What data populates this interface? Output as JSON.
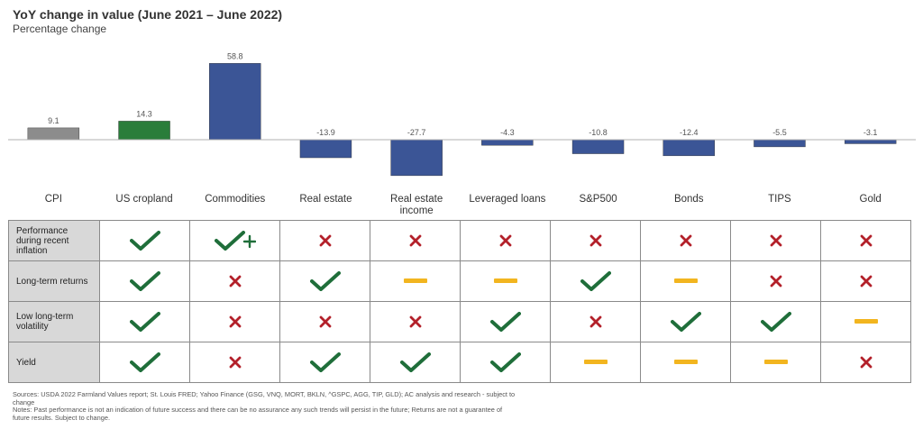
{
  "chart_data": {
    "type": "bar",
    "title": "YoY change in value (June 2021 – June 2022)",
    "subtitle": "Percentage change",
    "categories": [
      "CPI",
      "US cropland",
      "Commodities",
      "Real estate",
      "Real estate income",
      "Leveraged loans",
      "S&P500",
      "Bonds",
      "TIPS",
      "Gold"
    ],
    "values": [
      9.1,
      14.3,
      58.8,
      -13.9,
      -27.7,
      -4.3,
      -10.8,
      -12.4,
      -5.5,
      -3.1
    ],
    "value_labels": [
      "9.1",
      "14.3",
      "58.8",
      "-13.9",
      "-27.7",
      "-4.3",
      "-10.8",
      "-12.4",
      "-5.5",
      "-3.1"
    ],
    "bar_colors": [
      "#8c8c8c",
      "#2a7d3a",
      "#3b5596",
      "#3b5596",
      "#3b5596",
      "#3b5596",
      "#3b5596",
      "#3b5596",
      "#3b5596",
      "#3b5596"
    ],
    "legend": "none",
    "grid": false
  },
  "comparison": {
    "rows": [
      {
        "label": "Performance during recent inflation",
        "marks": [
          "check",
          "check-plus",
          "cross",
          "cross",
          "cross",
          "cross",
          "cross",
          "cross",
          "cross"
        ]
      },
      {
        "label": "Long-term returns",
        "marks": [
          "check",
          "cross",
          "check",
          "dash",
          "dash",
          "check",
          "dash",
          "cross",
          "cross"
        ]
      },
      {
        "label": "Low long-term volatility",
        "marks": [
          "check",
          "cross",
          "cross",
          "cross",
          "check",
          "cross",
          "check",
          "check",
          "dash"
        ]
      },
      {
        "label": "Yield",
        "marks": [
          "check",
          "cross",
          "check",
          "check",
          "check",
          "dash",
          "dash",
          "dash",
          "cross"
        ]
      }
    ],
    "colors": {
      "check": "#1f6e3a",
      "cross": "#b3202a",
      "dash": "#f2b51f"
    }
  },
  "notes": {
    "sources": "Sources: USDA 2022 Farmland Values report; St. Louis FRED; Yahoo Finance (GSG, VNQ, MORT, BKLN, ^GSPC, AGG, TIP, GLD); AC analysis and research - subject to change",
    "disclaimer": "Notes: Past performance is not an indication of future success and there can be no assurance any such trends will persist in the future; Returns are not a guarantee of future results. Subject to change."
  }
}
